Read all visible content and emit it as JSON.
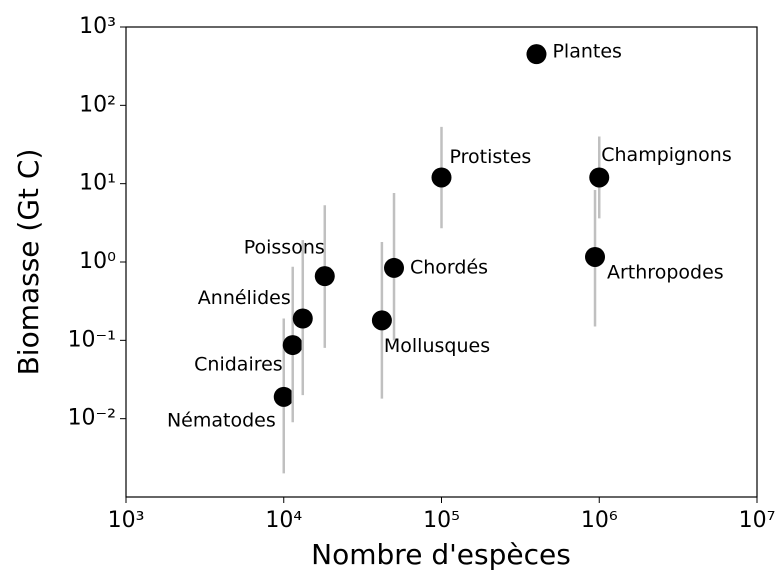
{
  "chart_data": {
    "type": "scatter",
    "x_label": "Nombre d'espèces",
    "y_label": "Biomasse (Gt C)",
    "log_x": true,
    "log_y": true,
    "labels": [
      "Nématodes",
      "Cnidaires",
      "Annélides",
      "Poissons",
      "Mollusques",
      "Chordés",
      "Protistes",
      "Plantes",
      "Champignons",
      "Arthropodes"
    ],
    "x": [
      10000,
      11400,
      13200,
      18200,
      41900,
      50000,
      100000,
      400000,
      1000000,
      940000
    ],
    "y": [
      0.019,
      0.087,
      0.19,
      0.66,
      0.18,
      0.84,
      12,
      450,
      12,
      1.16
    ],
    "err_low": [
      0.002,
      0.009,
      0.02,
      0.08,
      0.018,
      0.1,
      2.7,
      null,
      3.6,
      0.15
    ],
    "err_high": [
      0.19,
      0.87,
      1.9,
      5.3,
      1.8,
      7.6,
      53,
      null,
      40,
      8.3
    ],
    "color": "#000000",
    "err_color": "#c0c0c0",
    "xlim": [
      1000,
      10000000
    ],
    "ylim": [
      0.001,
      1000
    ],
    "xticks": [
      {
        "value": 1000,
        "label": "10³"
      },
      {
        "value": 10000,
        "label": "10⁴"
      },
      {
        "value": 100000,
        "label": "10⁵"
      },
      {
        "value": 1000000,
        "label": "10⁶"
      },
      {
        "value": 10000000,
        "label": "10⁷"
      }
    ],
    "yticks": [
      {
        "value": 0.01,
        "label": "10⁻²"
      },
      {
        "value": 0.1,
        "label": "10⁻¹"
      },
      {
        "value": 1,
        "label": "10⁰"
      },
      {
        "value": 10,
        "label": "10¹"
      },
      {
        "value": 100,
        "label": "10²"
      },
      {
        "value": 1000,
        "label": "10³"
      }
    ]
  }
}
